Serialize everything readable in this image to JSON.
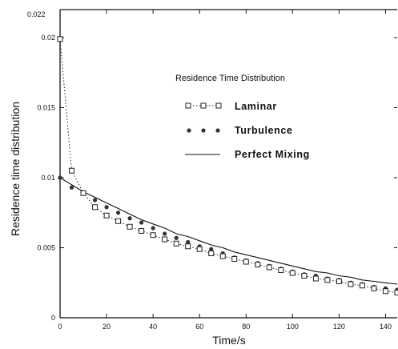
{
  "chart_data": {
    "type": "line",
    "title": "Residence Time Distribution",
    "xlabel": "Time/s",
    "ylabel": "Residence time distribution",
    "xlim": [
      0,
      145
    ],
    "ylim": [
      0,
      0.022
    ],
    "x_ticks": [
      0,
      20,
      40,
      60,
      80,
      100,
      120,
      140
    ],
    "x_tick_labels": [
      "0",
      "20",
      "40",
      "60",
      "80",
      "100",
      "120",
      "140"
    ],
    "y_ticks": [
      0,
      0.005,
      0.01,
      0.015,
      0.02,
      0.022
    ],
    "y_tick_labels": [
      "0",
      "0.005",
      "0.01",
      "0.015",
      "0.02",
      "0.022"
    ],
    "grid": false,
    "legend": {
      "position": "upper-right"
    },
    "series": [
      {
        "name": "Laminar",
        "marker": "open-square",
        "line": "dotted",
        "color": "#222222",
        "x": [
          0,
          5,
          10,
          15,
          20,
          25,
          30,
          35,
          40,
          45,
          50,
          55,
          60,
          65,
          70,
          75,
          80,
          85,
          90,
          95,
          100,
          105,
          110,
          115,
          120,
          125,
          130,
          135,
          140,
          145
        ],
        "y": [
          0.0199,
          0.0105,
          0.0089,
          0.0079,
          0.0073,
          0.0069,
          0.0065,
          0.0062,
          0.0059,
          0.0056,
          0.0053,
          0.0051,
          0.0049,
          0.0046,
          0.0044,
          0.0042,
          0.004,
          0.0038,
          0.0036,
          0.0034,
          0.0032,
          0.003,
          0.0028,
          0.0027,
          0.0026,
          0.0024,
          0.0023,
          0.0021,
          0.0019,
          0.0018
        ]
      },
      {
        "name": "Turbulence",
        "marker": "filled-circle",
        "line": "none",
        "color": "#333333",
        "x": [
          0,
          5,
          10,
          15,
          20,
          25,
          30,
          35,
          40,
          45,
          50,
          55,
          60,
          65,
          70,
          75,
          80,
          85,
          90,
          95,
          100,
          105,
          110,
          115,
          120,
          125,
          130,
          135,
          140,
          145
        ],
        "y": [
          0.01,
          0.0093,
          0.0089,
          0.0084,
          0.0079,
          0.0075,
          0.0071,
          0.0068,
          0.0064,
          0.006,
          0.0057,
          0.0054,
          0.0051,
          0.0049,
          0.0046,
          0.0043,
          0.0041,
          0.0039,
          0.0037,
          0.0035,
          0.0033,
          0.0031,
          0.003,
          0.0028,
          0.0027,
          0.0025,
          0.0024,
          0.0022,
          0.0021,
          0.002
        ]
      },
      {
        "name": "Perfect Mixing",
        "marker": "none",
        "line": "solid",
        "color": "#111111",
        "x": [
          0,
          5,
          10,
          15,
          20,
          25,
          30,
          35,
          40,
          45,
          50,
          55,
          60,
          65,
          70,
          75,
          80,
          85,
          90,
          95,
          100,
          105,
          110,
          115,
          120,
          125,
          130,
          135,
          140,
          145
        ],
        "y": [
          0.01,
          0.0095,
          0.009,
          0.0086,
          0.0082,
          0.0078,
          0.0074,
          0.007,
          0.0067,
          0.0064,
          0.006,
          0.0058,
          0.0055,
          0.0052,
          0.005,
          0.0047,
          0.0045,
          0.0043,
          0.0041,
          0.0039,
          0.0037,
          0.0035,
          0.0033,
          0.0032,
          0.003,
          0.0029,
          0.0027,
          0.0026,
          0.0025,
          0.0024
        ]
      }
    ]
  }
}
